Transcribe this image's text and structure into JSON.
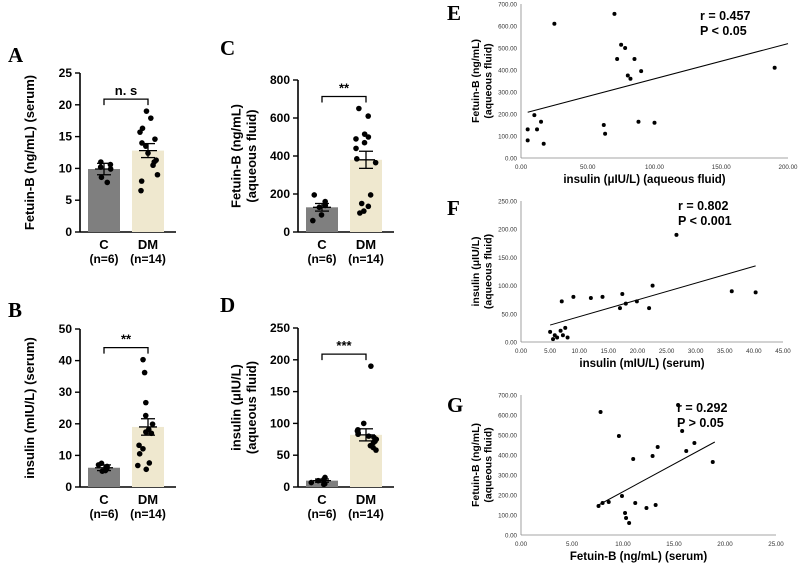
{
  "figure": {
    "colors": {
      "control_bar": "#7f7f7f",
      "dm_bar": "#efe8cf",
      "axis": "#000000",
      "dot": "#000000"
    }
  },
  "chart_data": [
    {
      "panel": "A",
      "type": "bar",
      "ylabel": "Fetuin-B (ng/mL) (serum)",
      "ylim": [
        0,
        25
      ],
      "yticks": [
        0,
        5,
        10,
        15,
        20,
        25
      ],
      "categories": [
        "C",
        "DM"
      ],
      "n_labels": [
        "(n=6)",
        "(n=14)"
      ],
      "values": [
        9.9,
        12.8
      ],
      "sem": [
        0.9,
        1.1
      ],
      "points": [
        [
          8.6,
          10.2,
          10.6,
          9.9,
          7.8,
          11.0
        ],
        [
          19.0,
          17.9,
          16.3,
          15.7,
          14.6,
          14.0,
          13.5,
          12.4,
          11.3,
          11.0,
          10.5,
          9.0,
          8.0,
          6.5
        ]
      ],
      "significance": "n. s"
    },
    {
      "panel": "B",
      "type": "bar",
      "ylabel": "insulin (mIU/L) (serum)",
      "ylim": [
        0,
        50
      ],
      "yticks": [
        0,
        10,
        20,
        30,
        40,
        50
      ],
      "categories": [
        "C",
        "DM"
      ],
      "n_labels": [
        "(n=6)",
        "(n=14)"
      ],
      "values": [
        6.1,
        19.0
      ],
      "sem": [
        0.9,
        2.6
      ],
      "points": [
        [
          5.0,
          6.5,
          7.5,
          5.2,
          5.8,
          7.0
        ],
        [
          40.3,
          36.2,
          26.7,
          22.6,
          19.9,
          18.2,
          17.4,
          17.0,
          13.2,
          12.1,
          10.5,
          7.6,
          6.8,
          5.6
        ]
      ],
      "significance": "**"
    },
    {
      "panel": "C",
      "type": "bar",
      "ylabel": "Fetuin-B (ng/mL) (aqueous fluid)",
      "ylim": [
        0,
        800
      ],
      "yticks": [
        0,
        200,
        400,
        600,
        800
      ],
      "categories": [
        "C",
        "DM"
      ],
      "n_labels": [
        "(n=6)",
        "(n=14)"
      ],
      "values": [
        130,
        380
      ],
      "sem": [
        20,
        45
      ],
      "points": [
        [
          195,
          160,
          130,
          140,
          90,
          60
        ],
        [
          650,
          610,
          515,
          500,
          490,
          470,
          440,
          385,
          365,
          195,
          150,
          135,
          110,
          100
        ]
      ],
      "significance": "**"
    },
    {
      "panel": "D",
      "type": "bar",
      "ylabel": "insulin (μIU/L) (aqueous fluid)",
      "ylim": [
        0,
        250
      ],
      "yticks": [
        0,
        50,
        100,
        150,
        200,
        250
      ],
      "categories": [
        "C",
        "DM"
      ],
      "n_labels": [
        "(n=6)",
        "(n=14)"
      ],
      "values": [
        10,
        82
      ],
      "sem": [
        2.5,
        9.5
      ],
      "points": [
        [
          5,
          15,
          10,
          12,
          4,
          7
        ],
        [
          190,
          100,
          90,
          88,
          85,
          83,
          80,
          78,
          75,
          72,
          70,
          65,
          62,
          58
        ]
      ],
      "significance": "***"
    },
    {
      "panel": "E",
      "type": "scatter",
      "xlabel": "insulin (μIU/L) (aqueous fluid)",
      "ylabel": "Fetuin-B (ng/mL) (aqueous fluid)",
      "xlim": [
        0,
        200
      ],
      "ylim": [
        0,
        700
      ],
      "xticks": [
        "0.00",
        "50.00",
        "100.00",
        "150.00",
        "200.00"
      ],
      "yticks": [
        "0.00",
        "100.00",
        "200.00",
        "300.00",
        "400.00",
        "500.00",
        "600.00",
        "700.00"
      ],
      "x": [
        5,
        5,
        10,
        12,
        15,
        17,
        25,
        62,
        63,
        70,
        72,
        75,
        78,
        80,
        82,
        85,
        88,
        90,
        100,
        190
      ],
      "y": [
        130,
        80,
        195,
        130,
        165,
        65,
        610,
        150,
        110,
        655,
        450,
        515,
        500,
        375,
        360,
        450,
        165,
        395,
        160,
        410
      ],
      "fit": [
        [
          5,
          208
        ],
        [
          200,
          520
        ]
      ],
      "r_label": "r = 0.457",
      "p_label": "P < 0.05"
    },
    {
      "panel": "F",
      "type": "scatter",
      "xlabel": "insulin (mIU/L) (serum)",
      "ylabel": "insulin (μIU/L) (aqueous fluid)",
      "xlim": [
        0,
        45
      ],
      "ylim": [
        0,
        250
      ],
      "xticks": [
        "0.00",
        "5.00",
        "10.00",
        "15.00",
        "20.00",
        "25.00",
        "30.00",
        "35.00",
        "40.00",
        "45.00"
      ],
      "yticks": [
        "0.00",
        "50.00",
        "100.00",
        "150.00",
        "200.00",
        "250.00"
      ],
      "x": [
        5.0,
        5.5,
        5.8,
        6.2,
        6.8,
        7.0,
        7.2,
        7.6,
        8.0,
        9.0,
        12.0,
        14.0,
        17.0,
        17.4,
        18.0,
        19.9,
        22.0,
        22.6,
        26.7,
        36.2,
        40.3
      ],
      "y": [
        18,
        5,
        12,
        8,
        20,
        72,
        12,
        25,
        8,
        80,
        78,
        80,
        60,
        85,
        68,
        72,
        60,
        100,
        190,
        90,
        88
      ],
      "fit": [
        [
          5,
          30
        ],
        [
          40.3,
          135
        ]
      ],
      "r_label": "r = 0.802",
      "p_label": "P < 0.001"
    },
    {
      "panel": "G",
      "type": "scatter",
      "xlabel": "Fetuin-B (ng/mL) (serum)",
      "ylabel": "Fetuin-B (ng/mL) (aqueous fluid)",
      "xlim": [
        0,
        25
      ],
      "ylim": [
        0,
        700
      ],
      "xticks": [
        "0.00",
        "5.00",
        "10.00",
        "15.00",
        "20.00",
        "25.00"
      ],
      "yticks": [
        "0.00",
        "100.00",
        "200.00",
        "300.00",
        "400.00",
        "500.00",
        "600.00",
        "700.00"
      ],
      "x": [
        7.6,
        7.8,
        8.0,
        8.6,
        9.6,
        9.9,
        10.2,
        10.3,
        10.6,
        11.0,
        11.2,
        12.3,
        12.9,
        13.2,
        13.4,
        15.4,
        15.8,
        16.2,
        17.0,
        18.8
      ],
      "y": [
        145,
        615,
        160,
        165,
        495,
        195,
        110,
        85,
        60,
        380,
        160,
        135,
        395,
        150,
        440,
        650,
        520,
        420,
        460,
        365
      ],
      "fit": [
        [
          7.6,
          150
        ],
        [
          19,
          465
        ]
      ],
      "r_label": "r = 0.292",
      "p_label": "P > 0.05"
    }
  ]
}
